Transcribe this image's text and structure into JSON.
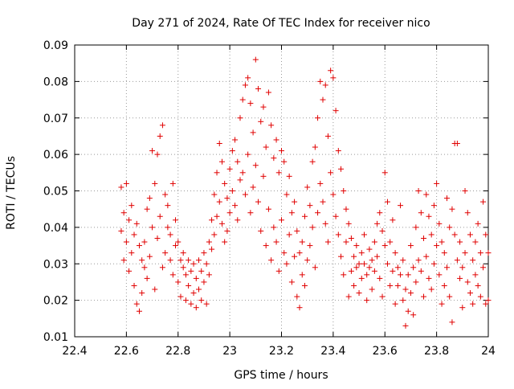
{
  "chart_data": {
    "type": "scatter",
    "title": "Day 271 of 2024, Rate Of TEC Index for receiver nico",
    "xlabel": "GPS time / hours",
    "ylabel": "ROTI / TECUs",
    "xlim": [
      22.4,
      24
    ],
    "ylim": [
      0.01,
      0.09
    ],
    "xticks": [
      "22.4",
      "22.6",
      "22.8",
      "23",
      "23.2",
      "23.4",
      "23.6",
      "23.8",
      "24"
    ],
    "yticks": [
      "0.01",
      "0.02",
      "0.03",
      "0.04",
      "0.05",
      "0.06",
      "0.07",
      "0.08",
      "0.09"
    ],
    "grid": true,
    "marker": "+",
    "series": [
      {
        "name": "ROTI",
        "color": "#e00000",
        "points": [
          [
            22.58,
            0.039
          ],
          [
            22.58,
            0.051
          ],
          [
            22.59,
            0.044
          ],
          [
            22.59,
            0.031
          ],
          [
            22.6,
            0.052
          ],
          [
            22.6,
            0.036
          ],
          [
            22.61,
            0.042
          ],
          [
            22.61,
            0.028
          ],
          [
            22.62,
            0.046
          ],
          [
            22.62,
            0.033
          ],
          [
            22.63,
            0.038
          ],
          [
            22.63,
            0.024
          ],
          [
            22.64,
            0.041
          ],
          [
            22.64,
            0.019
          ],
          [
            22.65,
            0.035
          ],
          [
            22.65,
            0.017
          ],
          [
            22.66,
            0.031
          ],
          [
            22.66,
            0.022
          ],
          [
            22.67,
            0.029
          ],
          [
            22.67,
            0.036
          ],
          [
            22.68,
            0.045
          ],
          [
            22.68,
            0.026
          ],
          [
            22.69,
            0.048
          ],
          [
            22.69,
            0.032
          ],
          [
            22.7,
            0.061
          ],
          [
            22.7,
            0.04
          ],
          [
            22.71,
            0.052
          ],
          [
            22.71,
            0.023
          ],
          [
            22.72,
            0.06
          ],
          [
            22.72,
            0.037
          ],
          [
            22.73,
            0.065
          ],
          [
            22.73,
            0.043
          ],
          [
            22.74,
            0.068
          ],
          [
            22.74,
            0.029
          ],
          [
            22.75,
            0.049
          ],
          [
            22.75,
            0.033
          ],
          [
            22.76,
            0.046
          ],
          [
            22.76,
            0.04
          ],
          [
            22.77,
            0.038
          ],
          [
            22.77,
            0.031
          ],
          [
            22.78,
            0.052
          ],
          [
            22.78,
            0.027
          ],
          [
            22.79,
            0.042
          ],
          [
            22.79,
            0.035
          ],
          [
            22.8,
            0.036
          ],
          [
            22.8,
            0.025
          ],
          [
            22.81,
            0.031
          ],
          [
            22.81,
            0.021
          ],
          [
            22.82,
            0.029
          ],
          [
            22.82,
            0.033
          ],
          [
            22.83,
            0.027
          ],
          [
            22.83,
            0.02
          ],
          [
            22.84,
            0.031
          ],
          [
            22.84,
            0.024
          ],
          [
            22.85,
            0.019
          ],
          [
            22.85,
            0.028
          ],
          [
            22.86,
            0.022
          ],
          [
            22.86,
            0.03
          ],
          [
            22.87,
            0.018
          ],
          [
            22.87,
            0.026
          ],
          [
            22.88,
            0.023
          ],
          [
            22.88,
            0.031
          ],
          [
            22.89,
            0.02
          ],
          [
            22.89,
            0.028
          ],
          [
            22.9,
            0.025
          ],
          [
            22.9,
            0.033
          ],
          [
            22.91,
            0.019
          ],
          [
            22.91,
            0.03
          ],
          [
            22.92,
            0.036
          ],
          [
            22.92,
            0.027
          ],
          [
            22.93,
            0.042
          ],
          [
            22.93,
            0.034
          ],
          [
            22.94,
            0.049
          ],
          [
            22.94,
            0.038
          ],
          [
            22.95,
            0.055
          ],
          [
            22.95,
            0.043
          ],
          [
            22.96,
            0.063
          ],
          [
            22.96,
            0.047
          ],
          [
            22.97,
            0.058
          ],
          [
            22.97,
            0.041
          ],
          [
            22.98,
            0.052
          ],
          [
            22.98,
            0.036
          ],
          [
            22.99,
            0.048
          ],
          [
            22.99,
            0.039
          ],
          [
            23.0,
            0.056
          ],
          [
            23.0,
            0.044
          ],
          [
            23.01,
            0.061
          ],
          [
            23.01,
            0.05
          ],
          [
            23.02,
            0.064
          ],
          [
            23.02,
            0.046
          ],
          [
            23.03,
            0.058
          ],
          [
            23.03,
            0.042
          ],
          [
            23.04,
            0.07
          ],
          [
            23.04,
            0.053
          ],
          [
            23.05,
            0.075
          ],
          [
            23.05,
            0.055
          ],
          [
            23.06,
            0.079
          ],
          [
            23.06,
            0.049
          ],
          [
            23.07,
            0.081
          ],
          [
            23.07,
            0.06
          ],
          [
            23.08,
            0.074
          ],
          [
            23.08,
            0.044
          ],
          [
            23.09,
            0.066
          ],
          [
            23.09,
            0.051
          ],
          [
            23.1,
            0.086
          ],
          [
            23.1,
            0.057
          ],
          [
            23.11,
            0.078
          ],
          [
            23.11,
            0.047
          ],
          [
            23.12,
            0.069
          ],
          [
            23.12,
            0.039
          ],
          [
            23.13,
            0.073
          ],
          [
            23.13,
            0.054
          ],
          [
            23.14,
            0.062
          ],
          [
            23.14,
            0.035
          ],
          [
            23.15,
            0.077
          ],
          [
            23.15,
            0.045
          ],
          [
            23.16,
            0.068
          ],
          [
            23.16,
            0.031
          ],
          [
            23.17,
            0.059
          ],
          [
            23.17,
            0.04
          ],
          [
            23.18,
            0.064
          ],
          [
            23.18,
            0.036
          ],
          [
            23.19,
            0.055
          ],
          [
            23.19,
            0.028
          ],
          [
            23.2,
            0.061
          ],
          [
            23.2,
            0.042
          ],
          [
            23.21,
            0.058
          ],
          [
            23.21,
            0.033
          ],
          [
            23.22,
            0.049
          ],
          [
            23.22,
            0.03
          ],
          [
            23.23,
            0.054
          ],
          [
            23.23,
            0.038
          ],
          [
            23.24,
            0.044
          ],
          [
            23.24,
            0.025
          ],
          [
            23.25,
            0.047
          ],
          [
            23.25,
            0.032
          ],
          [
            23.26,
            0.039
          ],
          [
            23.26,
            0.021
          ],
          [
            23.27,
            0.033
          ],
          [
            23.27,
            0.018
          ],
          [
            23.28,
            0.036
          ],
          [
            23.28,
            0.027
          ],
          [
            23.29,
            0.043
          ],
          [
            23.29,
            0.024
          ],
          [
            23.3,
            0.051
          ],
          [
            23.3,
            0.031
          ],
          [
            23.31,
            0.046
          ],
          [
            23.31,
            0.035
          ],
          [
            23.32,
            0.058
          ],
          [
            23.32,
            0.04
          ],
          [
            23.33,
            0.062
          ],
          [
            23.33,
            0.029
          ],
          [
            23.34,
            0.07
          ],
          [
            23.34,
            0.044
          ],
          [
            23.35,
            0.08
          ],
          [
            23.35,
            0.052
          ],
          [
            23.36,
            0.075
          ],
          [
            23.36,
            0.047
          ],
          [
            23.37,
            0.079
          ],
          [
            23.37,
            0.041
          ],
          [
            23.38,
            0.065
          ],
          [
            23.38,
            0.036
          ],
          [
            23.39,
            0.083
          ],
          [
            23.39,
            0.055
          ],
          [
            23.4,
            0.081
          ],
          [
            23.4,
            0.049
          ],
          [
            23.41,
            0.072
          ],
          [
            23.41,
            0.043
          ],
          [
            23.42,
            0.061
          ],
          [
            23.42,
            0.038
          ],
          [
            23.43,
            0.056
          ],
          [
            23.43,
            0.032
          ],
          [
            23.44,
            0.05
          ],
          [
            23.44,
            0.027
          ],
          [
            23.45,
            0.045
          ],
          [
            23.45,
            0.036
          ],
          [
            23.46,
            0.041
          ],
          [
            23.46,
            0.021
          ],
          [
            23.47,
            0.037
          ],
          [
            23.47,
            0.028
          ],
          [
            23.48,
            0.032
          ],
          [
            23.48,
            0.024
          ],
          [
            23.49,
            0.035
          ],
          [
            23.49,
            0.029
          ],
          [
            23.5,
            0.03
          ],
          [
            23.5,
            0.022
          ],
          [
            23.51,
            0.033
          ],
          [
            23.51,
            0.026
          ],
          [
            23.52,
            0.038
          ],
          [
            23.52,
            0.03
          ],
          [
            23.53,
            0.027
          ],
          [
            23.53,
            0.02
          ],
          [
            23.54,
            0.034
          ],
          [
            23.54,
            0.029
          ],
          [
            23.55,
            0.031
          ],
          [
            23.55,
            0.023
          ],
          [
            23.56,
            0.036
          ],
          [
            23.56,
            0.028
          ],
          [
            23.57,
            0.041
          ],
          [
            23.57,
            0.032
          ],
          [
            23.58,
            0.044
          ],
          [
            23.58,
            0.026
          ],
          [
            23.59,
            0.039
          ],
          [
            23.59,
            0.021
          ],
          [
            23.6,
            0.055
          ],
          [
            23.6,
            0.035
          ],
          [
            23.61,
            0.047
          ],
          [
            23.61,
            0.03
          ],
          [
            23.62,
            0.036
          ],
          [
            23.62,
            0.024
          ],
          [
            23.63,
            0.042
          ],
          [
            23.63,
            0.028
          ],
          [
            23.64,
            0.033
          ],
          [
            23.64,
            0.019
          ],
          [
            23.65,
            0.029
          ],
          [
            23.65,
            0.024
          ],
          [
            23.66,
            0.046
          ],
          [
            23.66,
            0.027
          ],
          [
            23.67,
            0.031
          ],
          [
            23.67,
            0.02
          ],
          [
            23.68,
            0.013
          ],
          [
            23.68,
            0.023
          ],
          [
            23.69,
            0.027
          ],
          [
            23.69,
            0.017
          ],
          [
            23.7,
            0.035
          ],
          [
            23.7,
            0.022
          ],
          [
            23.71,
            0.029
          ],
          [
            23.71,
            0.016
          ],
          [
            23.72,
            0.04
          ],
          [
            23.72,
            0.025
          ],
          [
            23.73,
            0.05
          ],
          [
            23.73,
            0.031
          ],
          [
            23.74,
            0.044
          ],
          [
            23.74,
            0.028
          ],
          [
            23.75,
            0.037
          ],
          [
            23.75,
            0.021
          ],
          [
            23.76,
            0.049
          ],
          [
            23.76,
            0.032
          ],
          [
            23.77,
            0.043
          ],
          [
            23.77,
            0.026
          ],
          [
            23.78,
            0.038
          ],
          [
            23.78,
            0.023
          ],
          [
            23.79,
            0.046
          ],
          [
            23.79,
            0.03
          ],
          [
            23.8,
            0.052
          ],
          [
            23.8,
            0.035
          ],
          [
            23.81,
            0.041
          ],
          [
            23.81,
            0.027
          ],
          [
            23.82,
            0.036
          ],
          [
            23.82,
            0.019
          ],
          [
            23.83,
            0.033
          ],
          [
            23.83,
            0.024
          ],
          [
            23.84,
            0.048
          ],
          [
            23.84,
            0.029
          ],
          [
            23.85,
            0.04
          ],
          [
            23.85,
            0.021
          ],
          [
            23.86,
            0.045
          ],
          [
            23.86,
            0.014
          ],
          [
            23.87,
            0.063
          ],
          [
            23.87,
            0.038
          ],
          [
            23.88,
            0.063
          ],
          [
            23.88,
            0.031
          ],
          [
            23.89,
            0.036
          ],
          [
            23.89,
            0.026
          ],
          [
            23.9,
            0.029
          ],
          [
            23.9,
            0.018
          ],
          [
            23.91,
            0.05
          ],
          [
            23.91,
            0.033
          ],
          [
            23.92,
            0.044
          ],
          [
            23.92,
            0.025
          ],
          [
            23.93,
            0.038
          ],
          [
            23.93,
            0.022
          ],
          [
            23.94,
            0.031
          ],
          [
            23.94,
            0.019
          ],
          [
            23.95,
            0.036
          ],
          [
            23.95,
            0.027
          ],
          [
            23.96,
            0.041
          ],
          [
            23.96,
            0.024
          ],
          [
            23.97,
            0.033
          ],
          [
            23.97,
            0.021
          ],
          [
            23.98,
            0.047
          ],
          [
            23.98,
            0.029
          ],
          [
            23.99,
            0.038
          ],
          [
            23.99,
            0.019
          ],
          [
            24.0,
            0.033
          ],
          [
            24.0,
            0.02
          ]
        ]
      }
    ]
  }
}
